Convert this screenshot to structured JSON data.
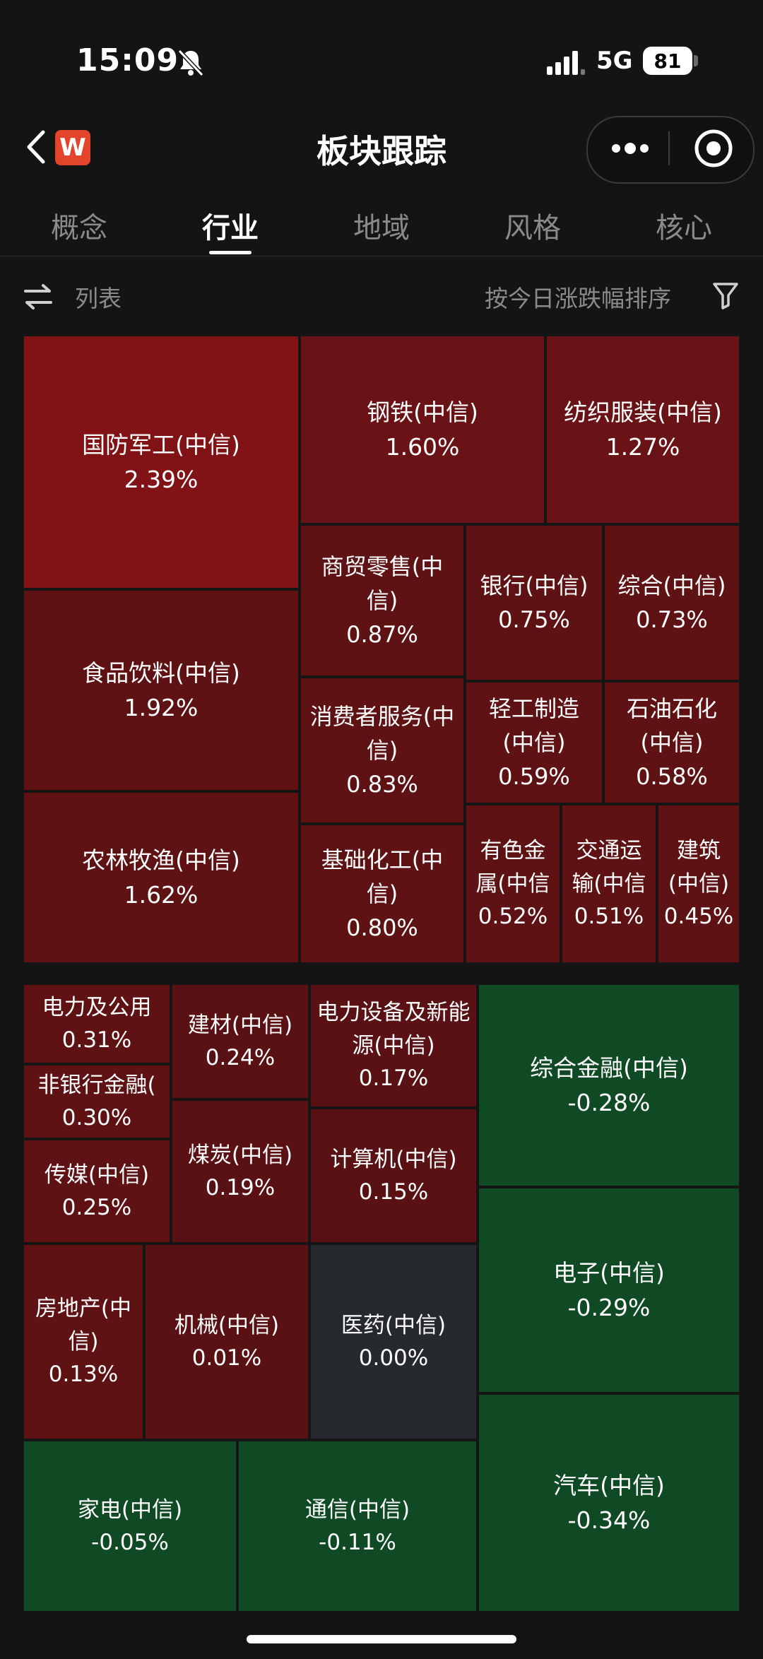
{
  "status_bar": {
    "time": "15:09",
    "network": "5G",
    "battery": "81"
  },
  "header": {
    "title": "板块跟踪",
    "logo_letter": "W"
  },
  "tabs": [
    {
      "label": "概念",
      "active": false
    },
    {
      "label": "行业",
      "active": true
    },
    {
      "label": "地域",
      "active": false
    },
    {
      "label": "风格",
      "active": false
    },
    {
      "label": "核心",
      "active": false
    }
  ],
  "toolbar": {
    "list_label": "列表",
    "sort_label": "按今日涨跌幅排序"
  },
  "treemap": [
    {
      "name": "国防军工(中信)",
      "pct": "2.39%"
    },
    {
      "name": "钢铁(中信)",
      "pct": "1.60%"
    },
    {
      "name": "纺织服装(中信)",
      "pct": "1.27%"
    },
    {
      "name": "食品饮料(中信)",
      "pct": "1.92%"
    },
    {
      "name": "商贸零售(中信)",
      "pct": "0.87%"
    },
    {
      "name": "银行(中信)",
      "pct": "0.75%"
    },
    {
      "name": "综合(中信)",
      "pct": "0.73%"
    },
    {
      "name": "消费者服务(中信)",
      "pct": "0.83%"
    },
    {
      "name": "轻工制造(中信)",
      "pct": "0.59%"
    },
    {
      "name": "石油石化(中信)",
      "pct": "0.58%"
    },
    {
      "name": "农林牧渔(中信)",
      "pct": "1.62%"
    },
    {
      "name": "基础化工(中信)",
      "pct": "0.80%"
    },
    {
      "name": "有色金属(中信",
      "pct": "0.52%"
    },
    {
      "name": "交通运输(中信",
      "pct": "0.51%"
    },
    {
      "name": "建筑(中信)",
      "pct": "0.45%"
    },
    {
      "name": "电力及公用",
      "pct": "0.31%"
    },
    {
      "name": "建材(中信)",
      "pct": "0.24%"
    },
    {
      "name": "电力设备及新能源(中信)",
      "pct": "0.17%"
    },
    {
      "name": "非银行金融(",
      "pct": "0.30%"
    },
    {
      "name": "传媒(中信)",
      "pct": "0.25%"
    },
    {
      "name": "煤炭(中信)",
      "pct": "0.19%"
    },
    {
      "name": "计算机(中信)",
      "pct": "0.15%"
    },
    {
      "name": "房地产(中信)",
      "pct": "0.13%"
    },
    {
      "name": "机械(中信)",
      "pct": "0.01%"
    },
    {
      "name": "医药(中信)",
      "pct": "0.00%"
    },
    {
      "name": "家电(中信)",
      "pct": "-0.05%"
    },
    {
      "name": "通信(中信)",
      "pct": "-0.11%"
    },
    {
      "name": "综合金融(中信)",
      "pct": "-0.28%"
    },
    {
      "name": "电子(中信)",
      "pct": "-0.29%"
    },
    {
      "name": "汽车(中信)",
      "pct": "-0.34%"
    }
  ]
}
